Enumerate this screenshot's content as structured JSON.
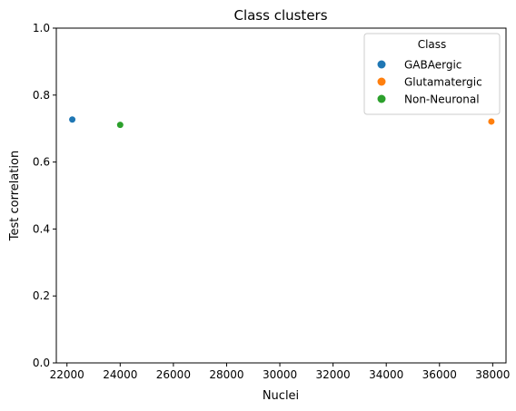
{
  "chart_data": {
    "type": "scatter",
    "title": "Class clusters",
    "xlabel": "Nuclei",
    "ylabel": "Test correlation",
    "xlim": [
      21600,
      38500
    ],
    "ylim": [
      0.0,
      1.0
    ],
    "xticks": [
      22000,
      24000,
      26000,
      28000,
      30000,
      32000,
      34000,
      36000,
      38000
    ],
    "yticks": [
      0.0,
      0.2,
      0.4,
      0.6,
      0.8,
      1.0
    ],
    "grid": false,
    "legend": {
      "title": "Class",
      "placement": "top-right"
    },
    "series": [
      {
        "name": "GABAergic",
        "color": "#1f77b4",
        "points": [
          {
            "x": 22200,
            "y": 0.727
          }
        ]
      },
      {
        "name": "Glutamatergic",
        "color": "#ff7f0e",
        "points": [
          {
            "x": 37950,
            "y": 0.721
          }
        ]
      },
      {
        "name": "Non-Neuronal",
        "color": "#2ca02c",
        "points": [
          {
            "x": 24000,
            "y": 0.711
          }
        ]
      }
    ]
  }
}
